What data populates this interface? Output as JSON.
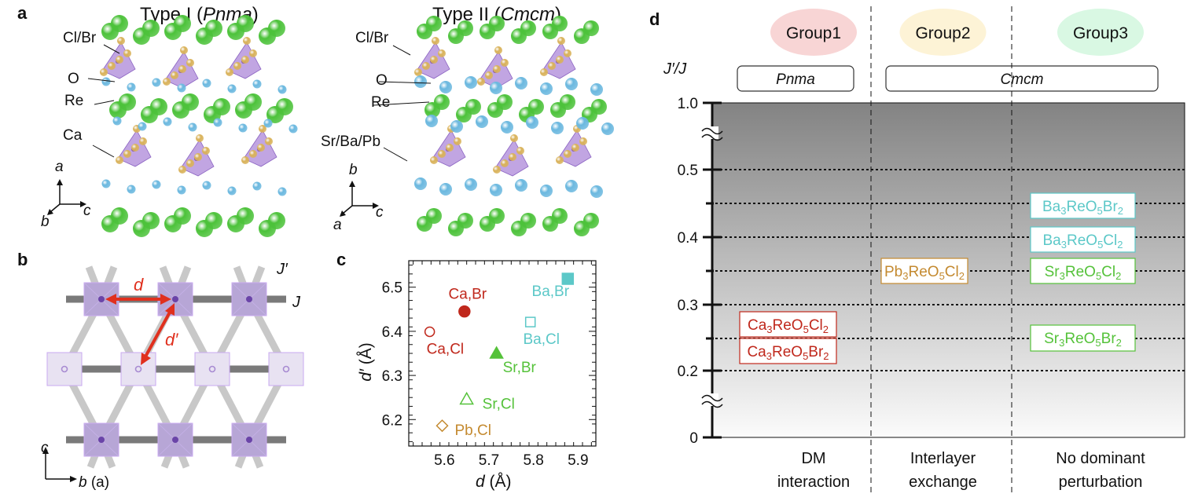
{
  "panel_a": {
    "label": "a",
    "type1": {
      "title_prefix": "Type I (",
      "title_italic": "Pnma",
      "title_suffix": ")",
      "labels": {
        "halide": "Cl/Br",
        "oxygen": "O",
        "rhenium": "Re",
        "cation": "Ca"
      },
      "axes": {
        "up": "a",
        "down": "b",
        "right": "c"
      }
    },
    "type2": {
      "title_prefix": "Type II (",
      "title_italic": "Cmcm",
      "title_suffix": ")",
      "labels": {
        "halide": "Cl/Br",
        "oxygen": "O",
        "rhenium": "Re",
        "cation": "Sr/Ba/Pb"
      },
      "axes": {
        "up": "b",
        "down": "a",
        "right": "c"
      }
    },
    "atom_colors": {
      "halide": "#4cc23a",
      "oxygen": "#d9b25a",
      "cation": "#6bb8df",
      "polyhedron": "#a77fd6"
    }
  },
  "panel_b": {
    "label": "b",
    "d_label": "d",
    "dprime_label": "d′",
    "J_label": "J",
    "Jprime_label": "J′",
    "axis_up": "c",
    "axis_right_main": "b",
    "axis_right_paren": "(a)",
    "arrow_color": "#e0301e"
  },
  "chart_data": {
    "type": "scatter",
    "panel_label": "c",
    "xlabel_italic": "d",
    "xlabel_unit": " (Å)",
    "ylabel_italic": "d′",
    "ylabel_unit": " (Å)",
    "xlim": [
      5.52,
      5.94
    ],
    "ylim": [
      6.14,
      6.56
    ],
    "xticks": [
      "5.6",
      "5.7",
      "5.8",
      "5.9"
    ],
    "xtick_values": [
      5.6,
      5.7,
      5.8,
      5.9
    ],
    "yticks": [
      "6.2",
      "6.3",
      "6.4",
      "6.5"
    ],
    "ytick_values": [
      6.2,
      6.3,
      6.4,
      6.5
    ],
    "points": [
      {
        "label": "Ca,Br",
        "x": 5.645,
        "y": 6.445,
        "marker": "circle",
        "filled": true,
        "color": "#c0281c"
      },
      {
        "label": "Ca,Cl",
        "x": 5.567,
        "y": 6.399,
        "marker": "circle",
        "filled": false,
        "color": "#c0281c"
      },
      {
        "label": "Ba,Br",
        "x": 5.877,
        "y": 6.519,
        "marker": "square",
        "filled": true,
        "color": "#5cc8c8"
      },
      {
        "label": "Ba,Cl",
        "x": 5.793,
        "y": 6.421,
        "marker": "square",
        "filled": false,
        "color": "#5cc8c8"
      },
      {
        "label": "Sr,Br",
        "x": 5.717,
        "y": 6.35,
        "marker": "triangle",
        "filled": true,
        "color": "#55c23a"
      },
      {
        "label": "Sr,Cl",
        "x": 5.65,
        "y": 6.246,
        "marker": "triangle",
        "filled": false,
        "color": "#55c23a"
      },
      {
        "label": "Pb,Cl",
        "x": 5.595,
        "y": 6.186,
        "marker": "diamond",
        "filled": false,
        "color": "#c48a30"
      }
    ]
  },
  "panel_d": {
    "label": "d",
    "ylabel": "J′/J",
    "groups": [
      {
        "name": "Group1",
        "color": "#f8d5d5"
      },
      {
        "name": "Group2",
        "color": "#fdf3d6"
      },
      {
        "name": "Group3",
        "color": "#d9f8e3"
      }
    ],
    "space_groups": [
      "Pnma",
      "Cmcm"
    ],
    "yticks": [
      "1.0",
      "0.5",
      "0.4",
      "0.3",
      "0.2",
      "0"
    ],
    "dotted_levels": [
      0.5,
      0.45,
      0.4,
      0.35,
      0.3,
      0.25,
      0.2
    ],
    "column_labels": [
      {
        "line1": "DM",
        "line2": "interaction"
      },
      {
        "line1": "Interlayer",
        "line2": "exchange"
      },
      {
        "line1": "No dominant",
        "line2": "perturbation"
      }
    ],
    "compounds": [
      {
        "id": "ca-cl",
        "parts": [
          "Ca",
          "3",
          "ReO",
          "5",
          "Cl",
          "2"
        ],
        "value": 0.25,
        "column": 1,
        "color": "#c0281c"
      },
      {
        "id": "ca-br",
        "parts": [
          "Ca",
          "3",
          "ReO",
          "5",
          "Br",
          "2"
        ],
        "value": 0.25,
        "column": 1,
        "color": "#c0281c"
      },
      {
        "id": "pb-cl",
        "parts": [
          "Pb",
          "3",
          "ReO",
          "5",
          "Cl",
          "2"
        ],
        "value": 0.35,
        "column": 2,
        "color": "#c48a30"
      },
      {
        "id": "ba-br",
        "parts": [
          "Ba",
          "3",
          "ReO",
          "5",
          "Br",
          "2"
        ],
        "value": 0.45,
        "column": 3,
        "color": "#5cc8c8"
      },
      {
        "id": "ba-cl",
        "parts": [
          "Ba",
          "3",
          "ReO",
          "5",
          "Cl",
          "2"
        ],
        "value": 0.4,
        "column": 3,
        "color": "#5cc8c8"
      },
      {
        "id": "sr-cl",
        "parts": [
          "Sr",
          "3",
          "ReO",
          "5",
          "Cl",
          "2"
        ],
        "value": 0.35,
        "column": 3,
        "color": "#55c23a"
      },
      {
        "id": "sr-br",
        "parts": [
          "Sr",
          "3",
          "ReO",
          "5",
          "Br",
          "2"
        ],
        "value": 0.25,
        "column": 3,
        "color": "#55c23a"
      }
    ]
  }
}
